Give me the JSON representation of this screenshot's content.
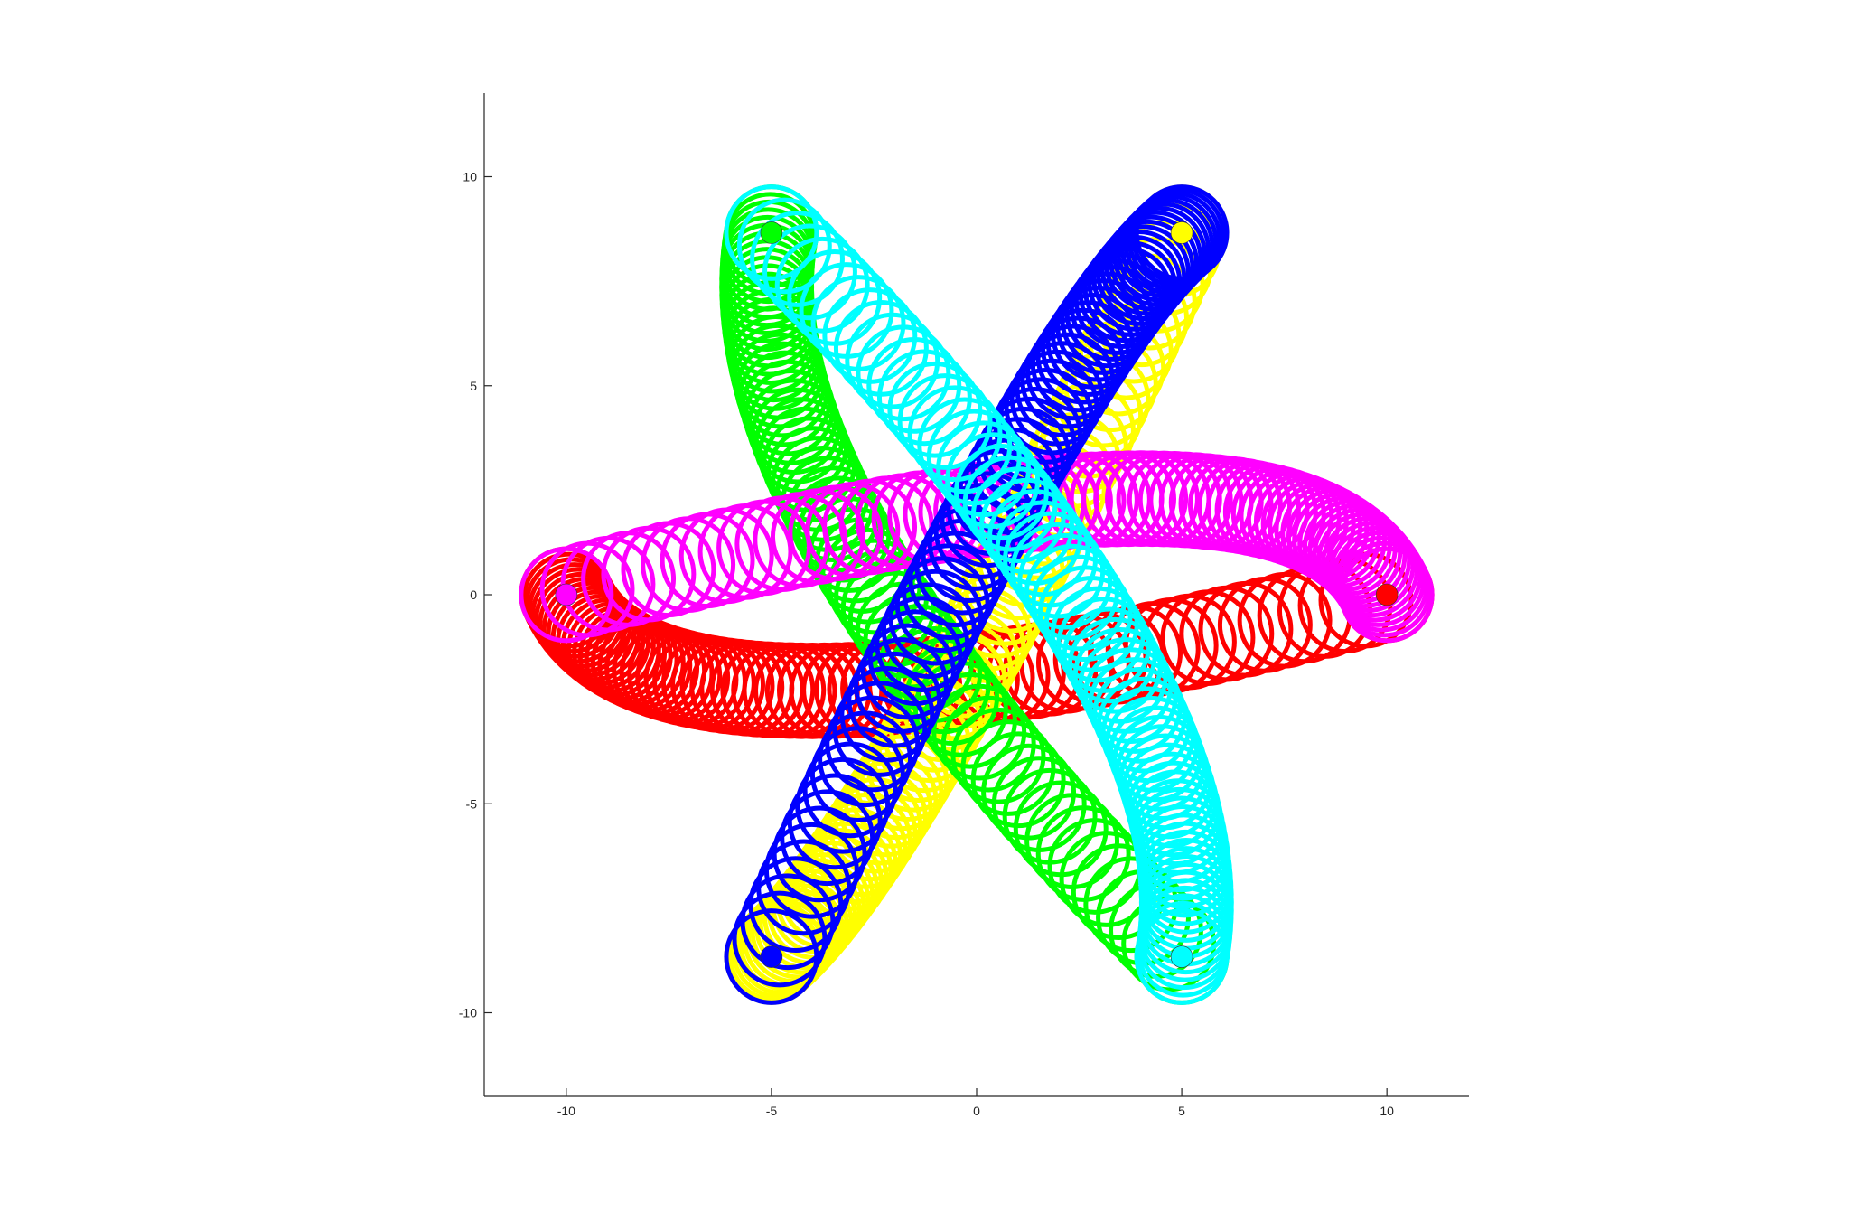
{
  "chart_data": {
    "type": "scatter",
    "title": "",
    "xlabel": "",
    "ylabel": "",
    "xlim": [
      -12,
      12
    ],
    "ylim": [
      -12,
      12
    ],
    "x_ticks": [
      -10,
      -5,
      0,
      5,
      10
    ],
    "y_ticks": [
      -10,
      -5,
      0,
      5,
      10
    ],
    "x_tick_labels": [
      "-10",
      "-5",
      "0",
      "5",
      "10"
    ],
    "y_tick_labels": [
      "10",
      "5",
      "0",
      "-5",
      "-10"
    ],
    "grid": false,
    "legend": "none",
    "marker": "open-circle",
    "marker_radius": 1.1,
    "series": [
      {
        "color": "#ff0000",
        "start": [
          10,
          0
        ],
        "ctrl": [
          -8.0,
          -4.6
        ],
        "end": [
          -10,
          0
        ]
      },
      {
        "color": "#ffff00",
        "start": [
          5,
          8.66
        ],
        "ctrl": [
          -2.0,
          -6.2
        ],
        "end": [
          -5,
          -8.66
        ]
      },
      {
        "color": "#00ff00",
        "start": [
          -5,
          8.66
        ],
        "ctrl": [
          -6.2,
          2.4
        ],
        "end": [
          5,
          -8.66
        ]
      },
      {
        "color": "#ff00ff",
        "start": [
          -10,
          0
        ],
        "ctrl": [
          8.0,
          4.6
        ],
        "end": [
          10,
          0
        ]
      },
      {
        "color": "#0000ff",
        "start": [
          -5,
          -8.66
        ],
        "ctrl": [
          2.0,
          6.2
        ],
        "end": [
          5,
          8.66
        ]
      },
      {
        "color": "#00ffff",
        "start": [
          5,
          -8.66
        ],
        "ctrl": [
          6.2,
          -2.4
        ],
        "end": [
          -5,
          8.66
        ]
      }
    ]
  }
}
